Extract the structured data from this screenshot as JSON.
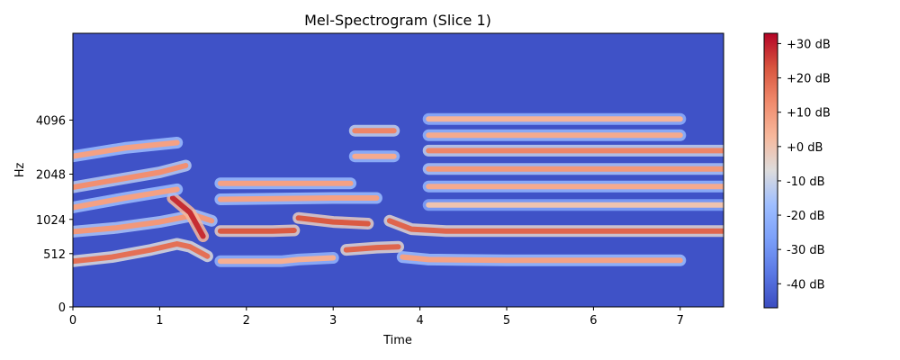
{
  "chart_data": {
    "type": "heatmap",
    "title": "Mel-Spectrogram (Slice 1)",
    "xlabel": "Time",
    "ylabel": "Hz",
    "xlim": [
      0,
      7.5
    ],
    "x_ticks": [
      0,
      1,
      2,
      3,
      4,
      5,
      6,
      7
    ],
    "y_ticks": [
      {
        "label": "0",
        "hz": 0
      },
      {
        "label": "512",
        "hz": 512
      },
      {
        "label": "1024",
        "hz": 1024
      },
      {
        "label": "2048",
        "hz": 2048
      },
      {
        "label": "4096",
        "hz": 4096
      }
    ],
    "y_scale": "mel",
    "ylim_hz": [
      0,
      11025
    ],
    "colormap": "coolwarm",
    "colorbar": {
      "range_db": [
        -47,
        33
      ],
      "ticks": [
        "+30 dB",
        "+20 dB",
        "+10 dB",
        "+0 dB",
        "-10 dB",
        "-20 dB",
        "-30 dB",
        "-40 dB"
      ],
      "tick_values": [
        30,
        20,
        10,
        0,
        -10,
        -20,
        -30,
        -40
      ]
    },
    "background_db": -45,
    "bands": [
      {
        "t": [
          0.0,
          0.45,
          0.9,
          1.2,
          1.35,
          1.55
        ],
        "hz": [
          420,
          470,
          560,
          640,
          600,
          480
        ],
        "db": 18
      },
      {
        "t": [
          1.7,
          2.4,
          2.6,
          3.0
        ],
        "hz": [
          420,
          420,
          440,
          460
        ],
        "db": 5
      },
      {
        "t": [
          3.15,
          3.5,
          3.75
        ],
        "hz": [
          560,
          590,
          600
        ],
        "db": 20
      },
      {
        "t": [
          3.8,
          4.1,
          5.0,
          6.0,
          7.0
        ],
        "hz": [
          470,
          440,
          430,
          430,
          430
        ],
        "db": 8
      },
      {
        "t": [
          0.0,
          0.5,
          1.0,
          1.4,
          1.6
        ],
        "hz": [
          820,
          880,
          980,
          1100,
          1000
        ],
        "db": 10
      },
      {
        "t": [
          1.7,
          2.3,
          2.55
        ],
        "hz": [
          830,
          830,
          840
        ],
        "db": 22
      },
      {
        "t": [
          2.6,
          3.0,
          3.4
        ],
        "hz": [
          1050,
          980,
          950
        ],
        "db": 22
      },
      {
        "t": [
          3.65,
          3.9,
          4.3,
          5.5,
          7.5
        ],
        "hz": [
          1000,
          860,
          830,
          830,
          830
        ],
        "db": 20
      },
      {
        "t": [
          1.15,
          1.35,
          1.5
        ],
        "hz": [
          1450,
          1150,
          750
        ],
        "db": 28
      },
      {
        "t": [
          0.0,
          0.6,
          1.2
        ],
        "hz": [
          1250,
          1450,
          1650
        ],
        "db": 8
      },
      {
        "t": [
          1.7,
          3.0,
          3.5
        ],
        "hz": [
          1420,
          1450,
          1450
        ],
        "db": 8
      },
      {
        "t": [
          4.1,
          5.5,
          7.5
        ],
        "hz": [
          1300,
          1300,
          1300
        ],
        "db": 0
      },
      {
        "t": [
          0.0,
          1.0,
          1.3
        ],
        "hz": [
          1700,
          2100,
          2300
        ],
        "db": 12
      },
      {
        "t": [
          1.7,
          3.2
        ],
        "hz": [
          1800,
          1800
        ],
        "db": 8
      },
      {
        "t": [
          4.1,
          5.5,
          7.5
        ],
        "hz": [
          1720,
          1720,
          1720
        ],
        "db": 6
      },
      {
        "t": [
          4.1,
          5.5,
          7.5
        ],
        "hz": [
          2200,
          2200,
          2200
        ],
        "db": 10
      },
      {
        "t": [
          4.1,
          5.5,
          7.5
        ],
        "hz": [
          2800,
          2800,
          2800
        ],
        "db": 14
      },
      {
        "t": [
          3.25,
          3.7
        ],
        "hz": [
          2600,
          2600
        ],
        "db": 6
      },
      {
        "t": [
          3.25,
          3.7
        ],
        "hz": [
          3600,
          3600
        ],
        "db": 14
      },
      {
        "t": [
          4.1,
          5.5,
          7.0
        ],
        "hz": [
          3400,
          3400,
          3400
        ],
        "db": 6
      },
      {
        "t": [
          4.1,
          5.5,
          7.0
        ],
        "hz": [
          4150,
          4150,
          4150
        ],
        "db": 4
      },
      {
        "t": [
          0.0,
          0.6,
          1.2
        ],
        "hz": [
          2600,
          2900,
          3100
        ],
        "db": 8
      }
    ]
  }
}
